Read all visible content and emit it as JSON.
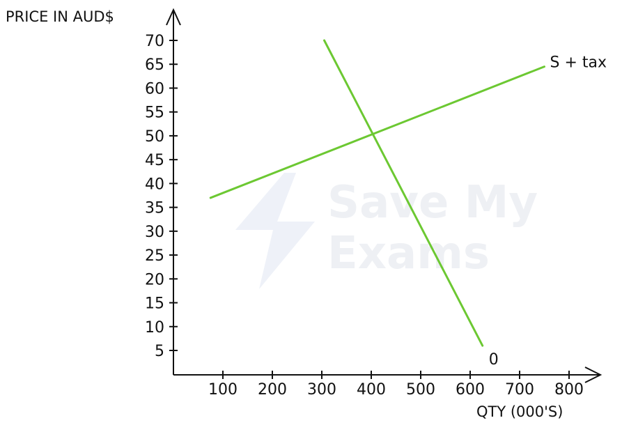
{
  "chart_data": {
    "type": "line",
    "ylabel": "PRICE IN AUD$",
    "xlabel": "QTY (000'S)",
    "x_ticks": [
      100,
      200,
      300,
      400,
      500,
      600,
      700,
      800
    ],
    "y_ticks": [
      5,
      10,
      15,
      20,
      25,
      30,
      35,
      40,
      45,
      50,
      55,
      60,
      65,
      70
    ],
    "xlim": [
      0,
      850
    ],
    "ylim": [
      0,
      75
    ],
    "grid": false,
    "series": [
      {
        "name": "S + tax",
        "color": "#6cc832",
        "points": [
          {
            "x": 75,
            "y": 37
          },
          {
            "x": 750,
            "y": 64.5
          }
        ]
      },
      {
        "name": "0",
        "color": "#6cc832",
        "points": [
          {
            "x": 305,
            "y": 70
          },
          {
            "x": 625,
            "y": 6
          }
        ]
      }
    ]
  },
  "watermark": {
    "line1": "Save My",
    "line2": "Exams"
  }
}
